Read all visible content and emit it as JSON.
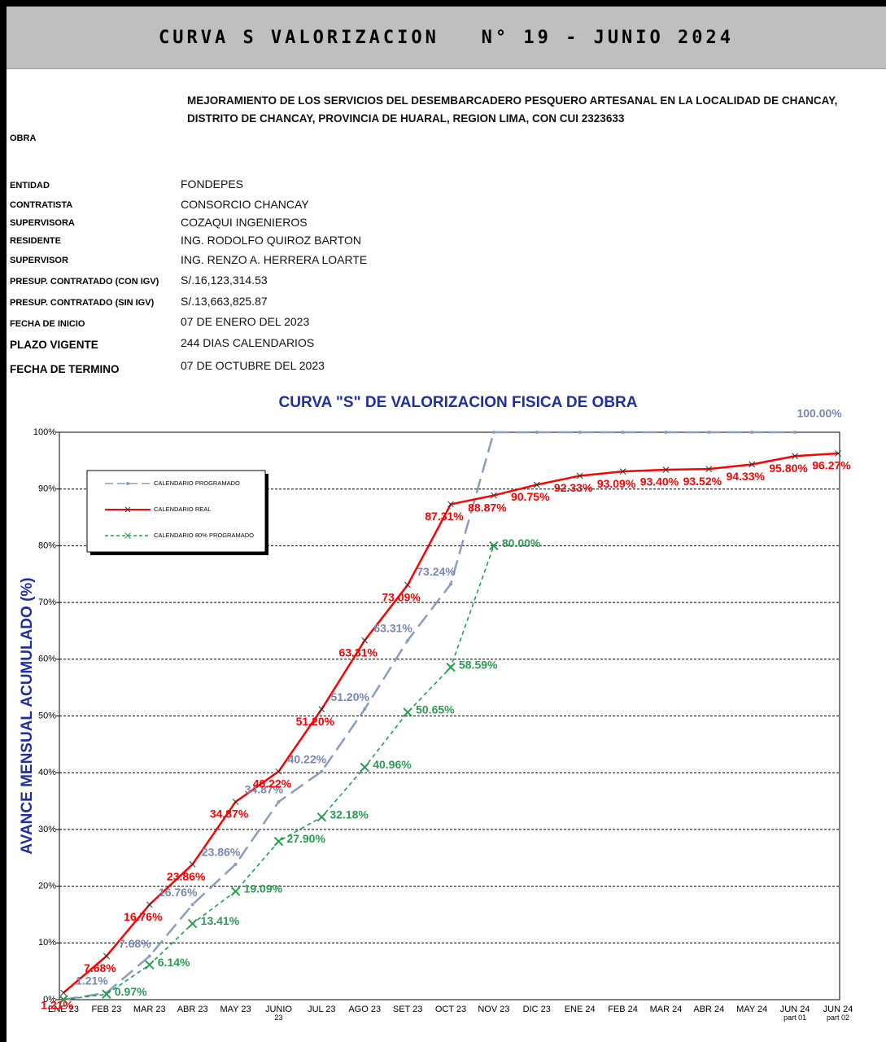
{
  "header": {
    "title": "CURVA S VALORIZACION   N° 19 - JUNIO 2024"
  },
  "obra_label": "OBRA",
  "obra": "MEJORAMIENTO DE LOS SERVICIOS DEL DESEMBARCADERO PESQUERO ARTESANAL EN LA LOCALIDAD DE CHANCAY, DISTRITO DE CHANCAY, PROVINCIA DE HUARAL, REGION LIMA, CON CUI 2323633",
  "fields": [
    {
      "label": "ENTIDAD",
      "value": "FONDEPES"
    },
    {
      "label": "CONTRATISTA",
      "value": "CONSORCIO CHANCAY"
    },
    {
      "label": "SUPERVISORA",
      "value": "COZAQUI INGENIEROS"
    },
    {
      "label": "RESIDENTE",
      "value": "ING. RODOLFO QUIROZ BARTON"
    },
    {
      "label": "SUPERVISOR",
      "value": "ING. RENZO A. HERRERA LOARTE"
    },
    {
      "label": "PRESUP. CONTRATADO (CON IGV)",
      "value": "S/.16,123,314.53"
    },
    {
      "label": "PRESUP. CONTRATADO (SIN IGV)",
      "value": "S/.13,663,825.87"
    },
    {
      "label": "FECHA DE INICIO",
      "value": "07 DE ENERO DEL 2023"
    },
    {
      "label": "PLAZO VIGENTE",
      "value": "244 DIAS CALENDARIOS"
    },
    {
      "label": "FECHA  DE TERMINO",
      "value": "07 DE OCTUBRE DEL 2023"
    }
  ],
  "chart_data": {
    "type": "line",
    "title": "CURVA \"S\" DE VALORIZACION FISICA DE OBRA",
    "y_label": "AVANCE MENSUAL ACUMULADO (%)",
    "categories": [
      "ENE 23",
      "FEB 23",
      "MAR 23",
      "ABR 23",
      "MAY 23",
      "JUNIO\n23",
      "JUL 23",
      "AGO 23",
      "SET 23",
      "OCT 23",
      "NOV 23",
      "DIC 23",
      "ENE 24",
      "FEB 24",
      "MAR 24",
      "ABR 24",
      "MAY 24",
      "JUN 24\npart 01",
      "JUN 24\npart 02"
    ],
    "ylim": [
      0,
      100
    ],
    "yticks": [
      {
        "value": 0,
        "label": "0%"
      },
      {
        "value": 10,
        "label": "10%"
      },
      {
        "value": 20,
        "label": "20%"
      },
      {
        "value": 30,
        "label": "30%"
      },
      {
        "value": 40,
        "label": "40%"
      },
      {
        "value": 50,
        "label": "50%"
      },
      {
        "value": 60,
        "label": "60%"
      },
      {
        "value": 70,
        "label": "70%"
      },
      {
        "value": 80,
        "label": "80%"
      },
      {
        "value": 90,
        "label": "90%"
      },
      {
        "value": 100,
        "label": "100%"
      }
    ],
    "grid": true,
    "legend": "top-left",
    "series": [
      {
        "name": "CALENDARIO PROGRAMADO",
        "color": "#8a9cc0",
        "style": "dashed",
        "values": [
          0,
          1.21,
          7.68,
          16.76,
          23.86,
          34.87,
          40.22,
          51.2,
          63.31,
          73.24,
          100,
          100,
          100,
          100,
          100,
          100,
          100,
          100,
          null
        ],
        "value_labels": [
          null,
          "1.21%",
          "7.68%",
          "16.76%",
          "23.86%",
          "34.87%",
          "40.22%",
          "51.20%",
          "63.31%",
          "73.24%",
          null,
          null,
          null,
          null,
          null,
          null,
          null,
          "100.00%",
          null
        ]
      },
      {
        "name": "CALENDARIO REAL",
        "color": "#ff0000",
        "style": "solid",
        "values": [
          1.21,
          7.68,
          16.76,
          23.86,
          34.87,
          40.22,
          51.2,
          63.31,
          73.09,
          87.31,
          88.87,
          90.75,
          92.33,
          93.09,
          93.4,
          93.52,
          94.33,
          95.8,
          96.27
        ],
        "value_labels": [
          "1.21%",
          "7.68%",
          "16.76%",
          "23.86%",
          "34.87%",
          "40.22%",
          "51.20%",
          "63.31%",
          "73.09%",
          "87.31%",
          "88.87%",
          "90.75%",
          "92.33%",
          "93.09%",
          "93.40%",
          "93.52%",
          "94.33%",
          "95.80%",
          "96.27%"
        ]
      },
      {
        "name": "CALENDARIO 80% PROGRAMADO",
        "color": "#22a050",
        "style": "dotted",
        "values": [
          0,
          0.97,
          6.14,
          13.41,
          19.09,
          27.9,
          32.18,
          40.96,
          50.65,
          58.59,
          80.0,
          null,
          null,
          null,
          null,
          null,
          null,
          null,
          null
        ],
        "value_labels": [
          null,
          "0.97%",
          "6.14%",
          "13.41%",
          "19.09%",
          "27.90%",
          "32.18%",
          "40.96%",
          "50.65%",
          "58.59%",
          "80.00%",
          null,
          null,
          null,
          null,
          null,
          null,
          null,
          null
        ]
      }
    ]
  }
}
